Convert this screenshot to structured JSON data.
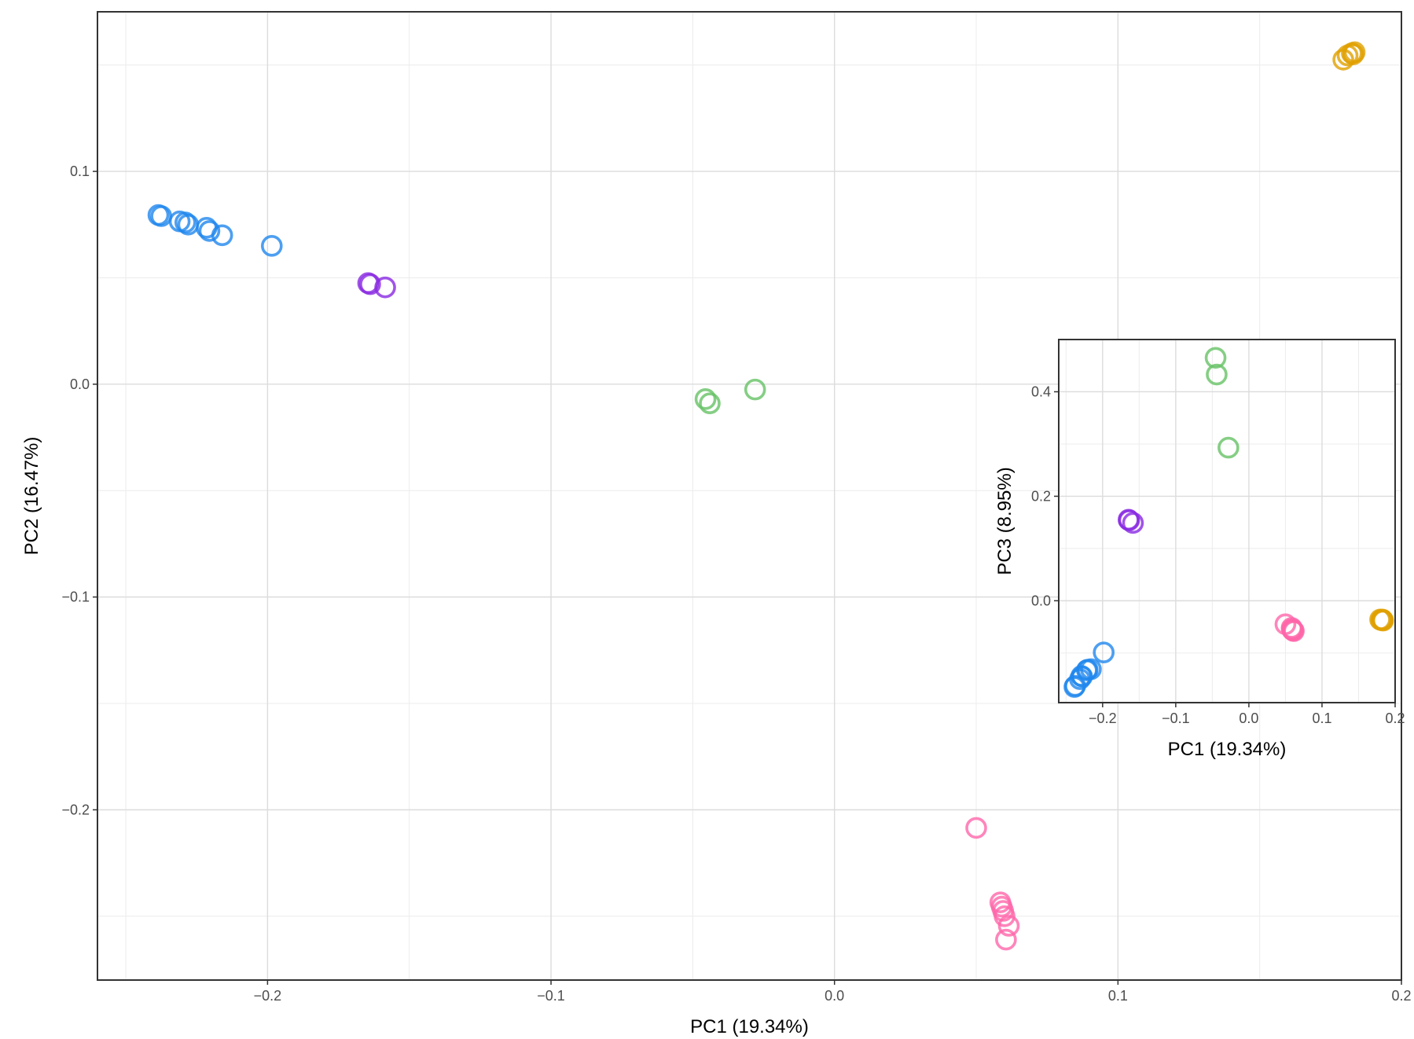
{
  "chart_data": [
    {
      "type": "scatter",
      "title": "",
      "xlabel": "PC1 (19.34%)",
      "ylabel": "PC2 (16.47%)",
      "xlim": [
        -0.26,
        0.2
      ],
      "ylim": [
        -0.28,
        0.175
      ],
      "xticks": [
        -0.2,
        -0.1,
        0.0,
        0.1,
        0.2
      ],
      "xtick_labels": [
        "−0.2",
        "−0.1",
        "0.0",
        "0.1",
        "0.2"
      ],
      "yticks": [
        -0.2,
        -0.1,
        0.0,
        0.1
      ],
      "ytick_labels": [
        "−0.2",
        "−0.1",
        "0.0",
        "0.1"
      ],
      "grid": true,
      "legend": "none",
      "series": [
        {
          "color": "#1f87ee",
          "points": [
            [
              -0.2385,
              0.0795
            ],
            [
              -0.2375,
              0.079
            ],
            [
              -0.231,
              0.0765
            ],
            [
              -0.229,
              0.076
            ],
            [
              -0.228,
              0.075
            ],
            [
              -0.2215,
              0.0735
            ],
            [
              -0.2205,
              0.072
            ],
            [
              -0.216,
              0.07
            ],
            [
              -0.1985,
              0.065
            ]
          ]
        },
        {
          "color": "#8a2be2",
          "points": [
            [
              -0.1645,
              0.0475
            ],
            [
              -0.1638,
              0.047
            ],
            [
              -0.1585,
              0.0455
            ]
          ]
        },
        {
          "color": "#66c266",
          "points": [
            [
              -0.0455,
              -0.007
            ],
            [
              -0.044,
              -0.009
            ],
            [
              -0.028,
              -0.0025
            ]
          ]
        },
        {
          "color": "#ff66aa",
          "points": [
            [
              0.05,
              -0.2085
            ],
            [
              0.0585,
              -0.2435
            ],
            [
              0.059,
              -0.2455
            ],
            [
              0.0595,
              -0.2475
            ],
            [
              0.06,
              -0.25
            ],
            [
              0.0615,
              -0.2545
            ],
            [
              0.0605,
              -0.261
            ]
          ]
        },
        {
          "color": "#e0a000",
          "points": [
            [
              0.1795,
              0.1525
            ],
            [
              0.181,
              0.1545
            ],
            [
              0.1825,
              0.1555
            ],
            [
              0.1835,
              0.156
            ],
            [
              0.183,
              0.155
            ]
          ]
        }
      ]
    },
    {
      "type": "scatter",
      "title": "",
      "xlabel": "PC1 (19.34%)",
      "ylabel": "PC3 (8.95%)",
      "xlim": [
        -0.26,
        0.2
      ],
      "ylim": [
        -0.195,
        0.5
      ],
      "xticks": [
        -0.2,
        -0.1,
        0.0,
        0.1,
        0.2
      ],
      "xtick_labels": [
        "−0.2",
        "−0.1",
        "0.0",
        "0.1",
        "0.2"
      ],
      "yticks": [
        0.0,
        0.2,
        0.4
      ],
      "ytick_labels": [
        "0.0",
        "0.2",
        "0.4"
      ],
      "grid": true,
      "legend": "none",
      "series": [
        {
          "color": "#1f87ee",
          "points": [
            [
              -0.2385,
              -0.165
            ],
            [
              -0.2375,
              -0.163
            ],
            [
              -0.231,
              -0.15
            ],
            [
              -0.229,
              -0.144
            ],
            [
              -0.228,
              -0.145
            ],
            [
              -0.2215,
              -0.133
            ],
            [
              -0.2205,
              -0.132
            ],
            [
              -0.216,
              -0.131
            ],
            [
              -0.1985,
              -0.099
            ]
          ]
        },
        {
          "color": "#8a2be2",
          "points": [
            [
              -0.1645,
              0.155
            ],
            [
              -0.1638,
              0.154
            ],
            [
              -0.1585,
              0.149
            ]
          ]
        },
        {
          "color": "#66c266",
          "points": [
            [
              -0.0455,
              0.465
            ],
            [
              -0.044,
              0.433
            ],
            [
              -0.028,
              0.293
            ]
          ]
        },
        {
          "color": "#ff66aa",
          "points": [
            [
              0.05,
              -0.045
            ],
            [
              0.0585,
              -0.052
            ],
            [
              0.059,
              -0.054
            ],
            [
              0.0595,
              -0.056
            ],
            [
              0.06,
              -0.056
            ],
            [
              0.0615,
              -0.058
            ],
            [
              0.0605,
              -0.057
            ]
          ]
        },
        {
          "color": "#e0a000",
          "points": [
            [
              0.1795,
              -0.036
            ],
            [
              0.181,
              -0.037
            ],
            [
              0.1825,
              -0.036
            ],
            [
              0.1835,
              -0.038
            ],
            [
              0.183,
              -0.037
            ]
          ]
        }
      ]
    }
  ]
}
